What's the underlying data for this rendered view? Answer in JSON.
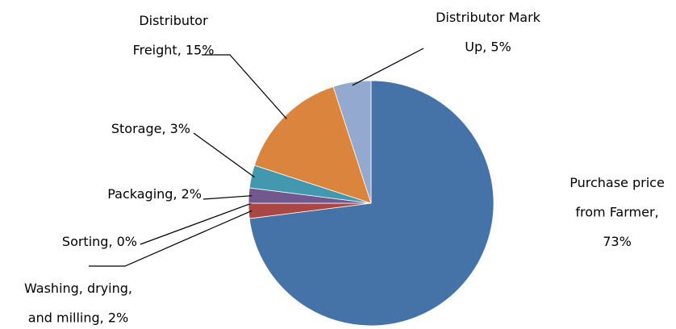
{
  "chart_data": {
    "type": "pie",
    "labels": [
      [
        "Purchase price",
        "from Farmer,",
        "73%"
      ],
      [
        "Washing, drying,",
        "and milling, 2%"
      ],
      [
        "Sorting, 0%"
      ],
      [
        "Packaging, 2%"
      ],
      [
        "Storage, 3%"
      ],
      [
        "Distributor",
        "Freight, 15%"
      ],
      [
        "Distributor Mark",
        "Up, 5%"
      ]
    ],
    "values": [
      73,
      2,
      0,
      2,
      3,
      15,
      5
    ],
    "colors": [
      "#4572A7",
      "#AA4643",
      "#89A54E",
      "#71588F",
      "#4198AF",
      "#DB843D",
      "#93A9CF"
    ]
  }
}
